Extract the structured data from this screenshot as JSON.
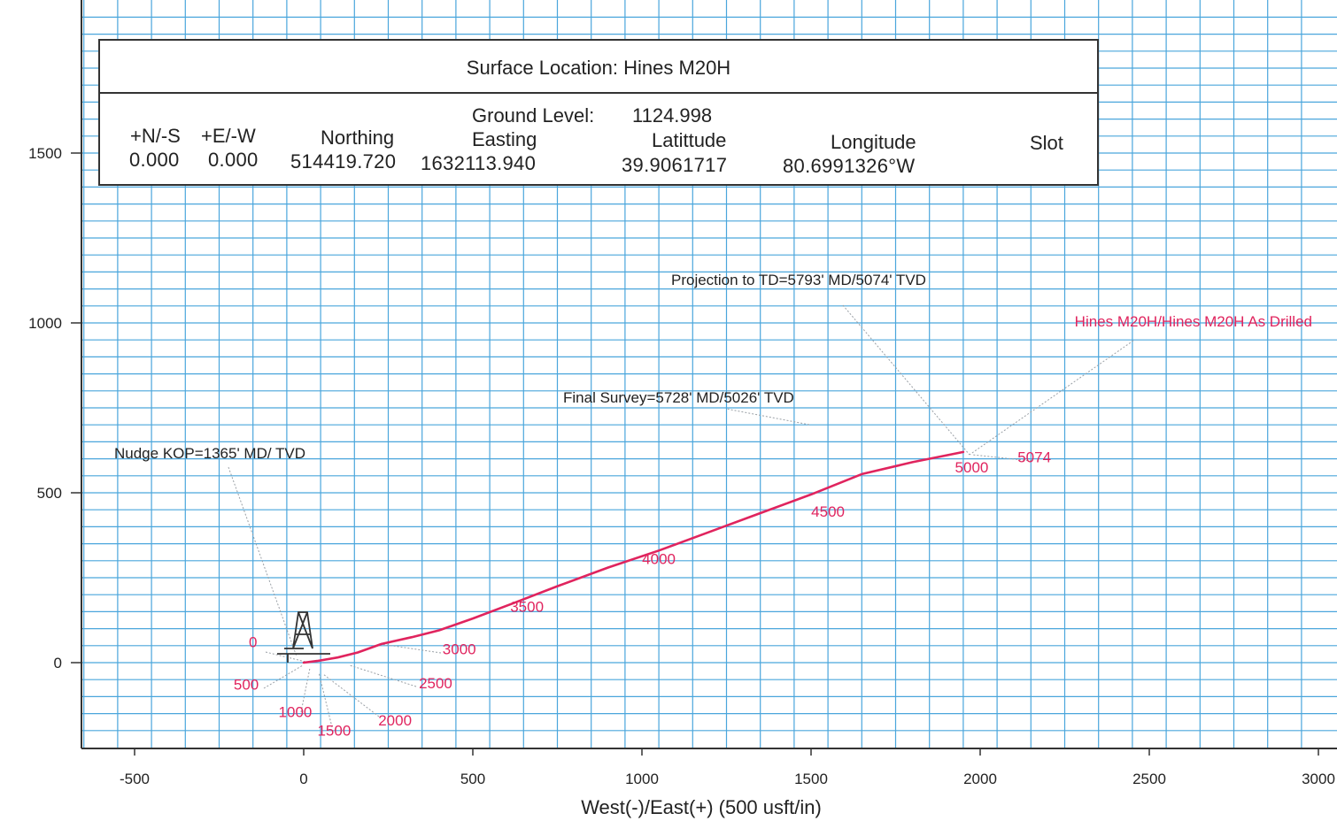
{
  "info_box": {
    "title_label": "Surface Location:",
    "title_value": "Hines M20H",
    "ground_level_label": "Ground Level:",
    "ground_level_value": "1124.998",
    "columns": [
      {
        "header": "+N/-S",
        "value": "0.000"
      },
      {
        "header": "+E/-W",
        "value": "0.000"
      },
      {
        "header": "Northing",
        "value": "514419.720"
      },
      {
        "header": "Easting",
        "value": "1632113.940"
      },
      {
        "header": "Latittude",
        "value": "39.9061717"
      },
      {
        "header": "Longitude",
        "value": "80.6991326°W"
      },
      {
        "header": "Slot",
        "value": ""
      }
    ]
  },
  "chart_data": {
    "type": "line",
    "xlabel": "West(-)/East(+) (500 usft/in)",
    "ylabel": "",
    "xlim": [
      -650,
      3000
    ],
    "ylim": [
      -250,
      1850
    ],
    "x_ticks": [
      -500,
      0,
      500,
      1000,
      1500,
      2000,
      2500,
      3000
    ],
    "y_ticks": [
      0,
      500,
      1000,
      1500
    ],
    "grid": true,
    "series": [
      {
        "name": "Hines M20H/Hines M20H As Drilled",
        "color": "#e0245e",
        "x": [
          0,
          40,
          100,
          160,
          230,
          320,
          400,
          500,
          620,
          750,
          900,
          1050,
          1200,
          1350,
          1500,
          1650,
          1800,
          1950
        ],
        "y": [
          0,
          5,
          15,
          30,
          55,
          75,
          95,
          130,
          175,
          225,
          280,
          330,
          385,
          440,
          495,
          555,
          590,
          620
        ]
      }
    ],
    "md_labels": [
      {
        "text": "0",
        "x": -150,
        "y": 45
      },
      {
        "text": "500",
        "x": -170,
        "y": -80
      },
      {
        "text": "1000",
        "x": -25,
        "y": -160
      },
      {
        "text": "1500",
        "x": 90,
        "y": -215
      },
      {
        "text": "2000",
        "x": 270,
        "y": -185
      },
      {
        "text": "2500",
        "x": 390,
        "y": -75
      },
      {
        "text": "3000",
        "x": 460,
        "y": 25
      },
      {
        "text": "3500",
        "x": 660,
        "y": 150
      },
      {
        "text": "4000",
        "x": 1050,
        "y": 290
      },
      {
        "text": "4500",
        "x": 1550,
        "y": 430
      },
      {
        "text": "5000",
        "x": 1975,
        "y": 560
      },
      {
        "text": "5074",
        "x": 2160,
        "y": 590
      }
    ],
    "annotations": [
      {
        "text": "Nudge KOP=1365' MD/ TVD"
      },
      {
        "text": "Final Survey=5728' MD/5026' TVD"
      },
      {
        "text": "Projection to TD=5793' MD/5074' TVD"
      },
      {
        "text": "Hines M20H/Hines M20H As Drilled"
      }
    ]
  },
  "colors": {
    "grid": "#4aa6dc",
    "axis": "#333333",
    "survey": "#e0245e",
    "text": "#222222"
  }
}
